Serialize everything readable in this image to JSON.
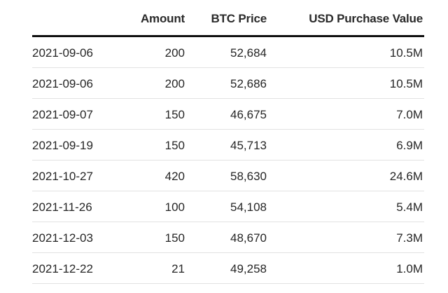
{
  "columns": {
    "date": "",
    "amount": "Amount",
    "btc_price": "BTC Price",
    "usd_value": "USD Purchase Value"
  },
  "rows": [
    {
      "date": "2021-09-06",
      "amount": "200",
      "btc_price": "52,684",
      "usd_value": "10.5M"
    },
    {
      "date": "2021-09-06",
      "amount": "200",
      "btc_price": "52,686",
      "usd_value": "10.5M"
    },
    {
      "date": "2021-09-07",
      "amount": "150",
      "btc_price": "46,675",
      "usd_value": "7.0M"
    },
    {
      "date": "2021-09-19",
      "amount": "150",
      "btc_price": "45,713",
      "usd_value": "6.9M"
    },
    {
      "date": "2021-10-27",
      "amount": "420",
      "btc_price": "58,630",
      "usd_value": "24.6M"
    },
    {
      "date": "2021-11-26",
      "amount": "100",
      "btc_price": "54,108",
      "usd_value": "5.4M"
    },
    {
      "date": "2021-12-03",
      "amount": "150",
      "btc_price": "48,670",
      "usd_value": "7.3M"
    },
    {
      "date": "2021-12-22",
      "amount": "21",
      "btc_price": "49,258",
      "usd_value": "1.0M"
    }
  ]
}
